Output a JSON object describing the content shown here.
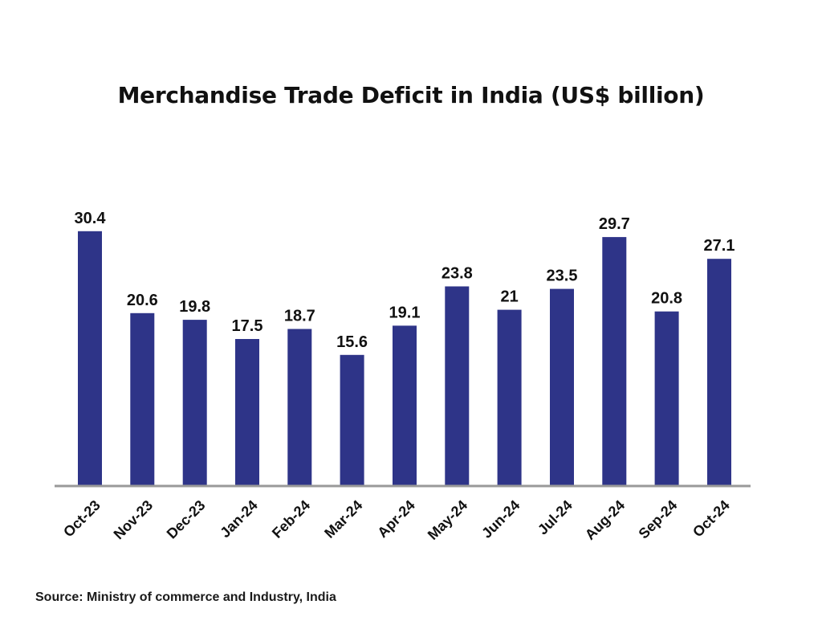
{
  "chart_data": {
    "type": "bar",
    "title": "Merchandise Trade Deficit in India (US$ billion)",
    "categories": [
      "Oct-23",
      "Nov-23",
      "Dec-23",
      "Jan-24",
      "Feb-24",
      "Mar-24",
      "Apr-24",
      "May-24",
      "Jun-24",
      "Jul-24",
      "Aug-24",
      "Sep-24",
      "Oct-24"
    ],
    "values": [
      30.4,
      20.6,
      19.8,
      17.5,
      18.7,
      15.6,
      19.1,
      23.8,
      21,
      23.5,
      29.7,
      20.8,
      27.1
    ],
    "data_labels": [
      "30.4",
      "20.6",
      "19.8",
      "17.5",
      "18.7",
      "15.6",
      "19.1",
      "23.8",
      "21",
      "23.5",
      "29.7",
      "20.8",
      "27.1"
    ],
    "xlabel": "",
    "ylabel": "",
    "ylim": [
      0,
      32
    ],
    "grid": false,
    "bar_color": "#2e3488",
    "axis_color": "#999999"
  },
  "source": "Source: Ministry of commerce and Industry, India"
}
